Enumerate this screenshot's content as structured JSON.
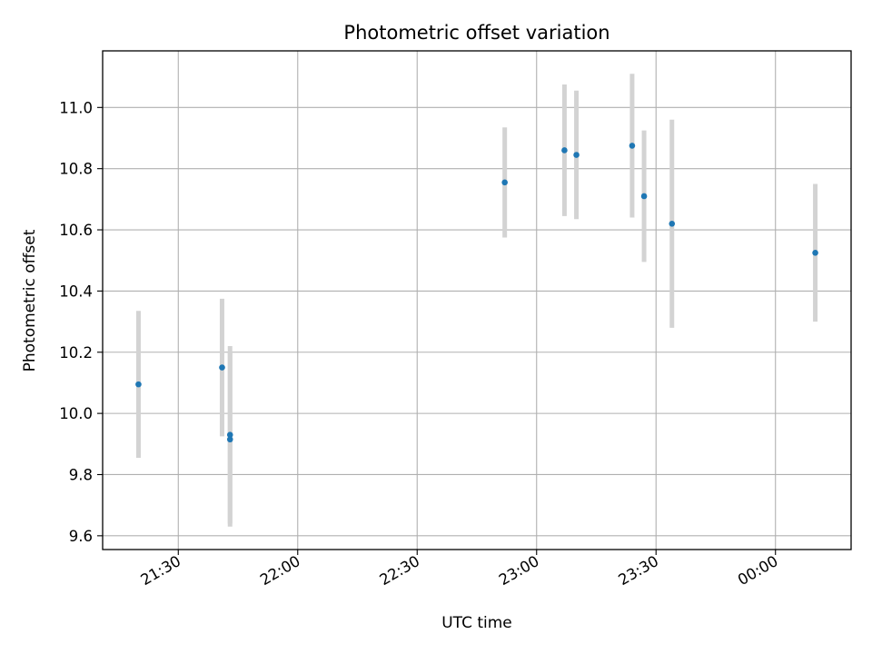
{
  "chart_data": {
    "type": "scatter",
    "title": "Photometric offset variation",
    "xlabel": "UTC time",
    "ylabel": "Photometric offset",
    "x_tick_labels": [
      "21:30",
      "22:00",
      "22:30",
      "23:00",
      "23:30",
      "00:00"
    ],
    "y_tick_labels": [
      "9.6",
      "9.8",
      "10.0",
      "10.2",
      "10.4",
      "10.6",
      "10.8",
      "11.0"
    ],
    "y_ticks": [
      9.6,
      9.8,
      10.0,
      10.2,
      10.4,
      10.6,
      10.8,
      11.0
    ],
    "ylim": [
      9.555,
      11.185
    ],
    "xlim": [
      "21:11",
      "00:19"
    ],
    "x_ticks": [
      "21:30",
      "22:00",
      "22:30",
      "23:00",
      "23:30",
      "00:00"
    ],
    "grid": true,
    "colors": {
      "points": "#1f77b4",
      "error_bars": "#d3d3d3",
      "grid": "#b0b0b0"
    },
    "points": [
      {
        "x": "21:20",
        "y": 10.095,
        "yerr": 0.24
      },
      {
        "x": "21:41",
        "y": 10.15,
        "yerr": 0.225
      },
      {
        "x": "21:43",
        "y": 9.93,
        "yerr": 0.29
      },
      {
        "x": "21:43",
        "y": 9.915,
        "yerr": 0.285
      },
      {
        "x": "22:52",
        "y": 10.755,
        "yerr": 0.18
      },
      {
        "x": "23:07",
        "y": 10.86,
        "yerr": 0.215
      },
      {
        "x": "23:10",
        "y": 10.845,
        "yerr": 0.21
      },
      {
        "x": "23:24",
        "y": 10.875,
        "yerr": 0.235
      },
      {
        "x": "23:27",
        "y": 10.71,
        "yerr": 0.215
      },
      {
        "x": "23:34",
        "y": 10.62,
        "yerr": 0.34
      },
      {
        "x": "00:10",
        "y": 10.525,
        "yerr": 0.225
      }
    ]
  }
}
